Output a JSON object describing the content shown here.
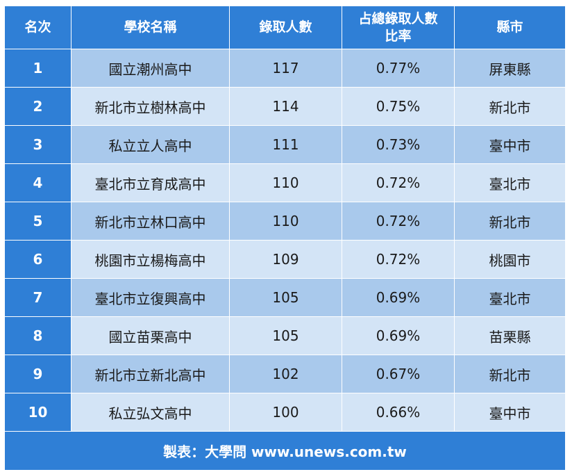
{
  "chart_data": {
    "type": "table",
    "columns": [
      "名次",
      "學校名稱",
      "錄取人數",
      "占總錄取人數比率",
      "縣市"
    ],
    "rows": [
      {
        "rank": "1",
        "school": "國立潮州高中",
        "admitted": "117",
        "ratio": "0.77%",
        "county": "屏東縣"
      },
      {
        "rank": "2",
        "school": "新北市立樹林高中",
        "admitted": "114",
        "ratio": "0.75%",
        "county": "新北市"
      },
      {
        "rank": "3",
        "school": "私立立人高中",
        "admitted": "111",
        "ratio": "0.73%",
        "county": "臺中市"
      },
      {
        "rank": "4",
        "school": "臺北市立育成高中",
        "admitted": "110",
        "ratio": "0.72%",
        "county": "臺北市"
      },
      {
        "rank": "5",
        "school": "新北市立林口高中",
        "admitted": "110",
        "ratio": "0.72%",
        "county": "新北市"
      },
      {
        "rank": "6",
        "school": "桃園市立楊梅高中",
        "admitted": "109",
        "ratio": "0.72%",
        "county": "桃園市"
      },
      {
        "rank": "7",
        "school": "臺北市立復興高中",
        "admitted": "105",
        "ratio": "0.69%",
        "county": "臺北市"
      },
      {
        "rank": "8",
        "school": "國立苗栗高中",
        "admitted": "105",
        "ratio": "0.69%",
        "county": "苗栗縣"
      },
      {
        "rank": "9",
        "school": "新北市立新北高中",
        "admitted": "102",
        "ratio": "0.67%",
        "county": "新北市"
      },
      {
        "rank": "10",
        "school": "私立弘文高中",
        "admitted": "100",
        "ratio": "0.66%",
        "county": "臺中市"
      }
    ],
    "footer": "製表：大學問 www.unews.com.tw"
  },
  "colors": {
    "header": "#2f7fd6",
    "row_odd": "#a9c9ec",
    "row_even": "#d3e4f6",
    "header_text": "#ffffff"
  }
}
